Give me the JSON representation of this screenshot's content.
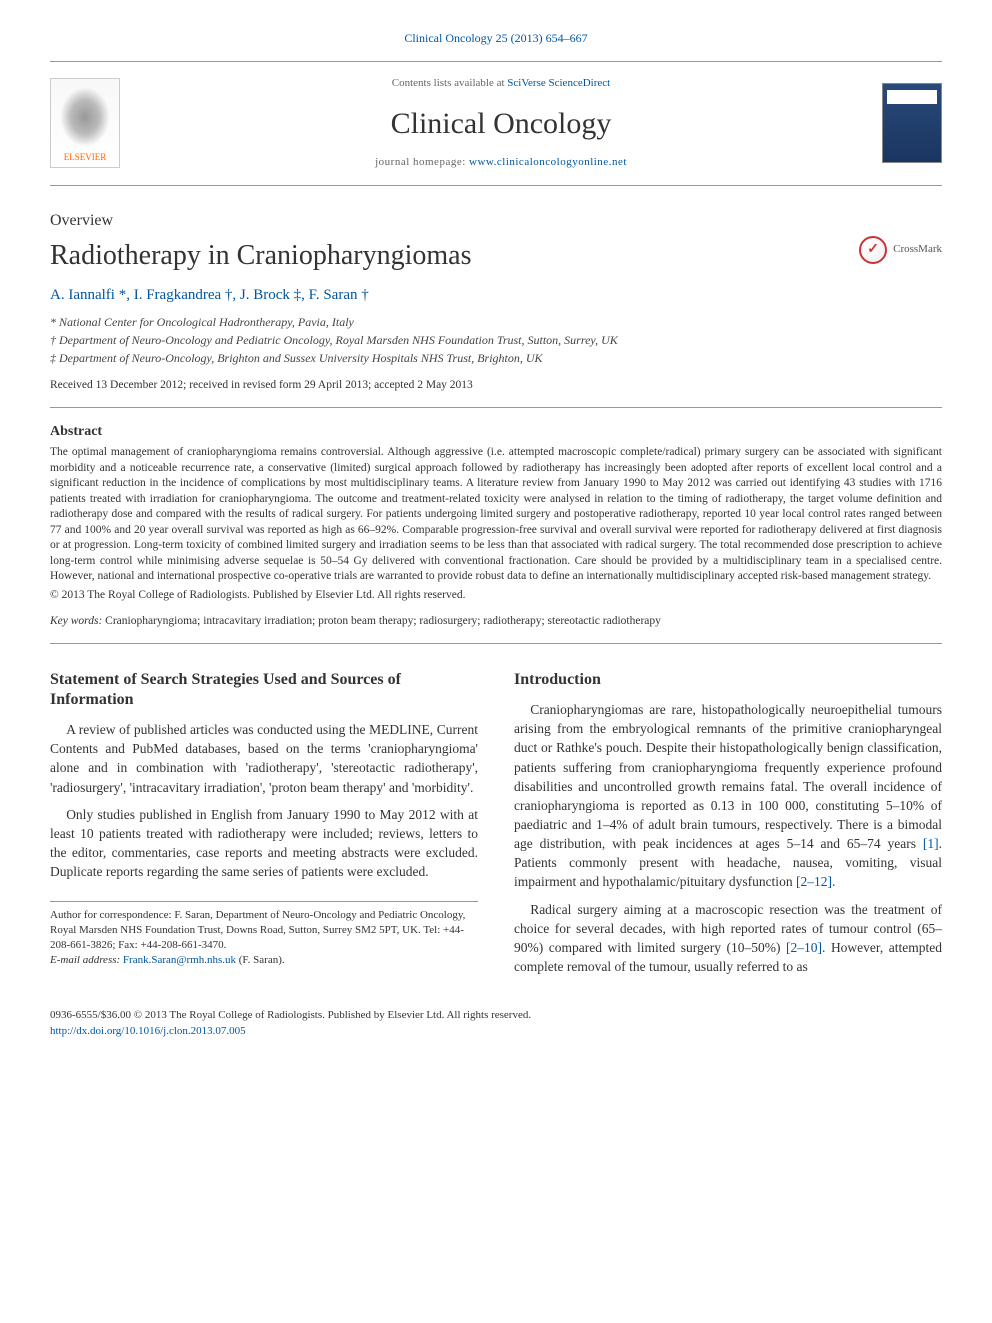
{
  "journal_ref": "Clinical Oncology 25 (2013) 654–667",
  "header": {
    "contents_prefix": "Contents lists available at ",
    "contents_link": "SciVerse ScienceDirect",
    "journal_name": "Clinical Oncology",
    "homepage_prefix": "journal homepage: ",
    "homepage_link": "www.clinicaloncologyonline.net",
    "elsevier_label": "ELSEVIER"
  },
  "article_type": "Overview",
  "title": "Radiotherapy in Craniopharyngiomas",
  "crossmark_label": "CrossMark",
  "authors": "A. Iannalfi *, I. Fragkandrea †, J. Brock ‡, F. Saran †",
  "affiliations": {
    "a": "* National Center for Oncological Hadrontherapy, Pavia, Italy",
    "b": "† Department of Neuro-Oncology and Pediatric Oncology, Royal Marsden NHS Foundation Trust, Sutton, Surrey, UK",
    "c": "‡ Department of Neuro-Oncology, Brighton and Sussex University Hospitals NHS Trust, Brighton, UK"
  },
  "history": "Received 13 December 2012; received in revised form 29 April 2013; accepted 2 May 2013",
  "abstract": {
    "heading": "Abstract",
    "text": "The optimal management of craniopharyngioma remains controversial. Although aggressive (i.e. attempted macroscopic complete/radical) primary surgery can be associated with significant morbidity and a noticeable recurrence rate, a conservative (limited) surgical approach followed by radiotherapy has increasingly been adopted after reports of excellent local control and a significant reduction in the incidence of complications by most multidisciplinary teams. A literature review from January 1990 to May 2012 was carried out identifying 43 studies with 1716 patients treated with irradiation for craniopharyngioma. The outcome and treatment-related toxicity were analysed in relation to the timing of radiotherapy, the target volume definition and radiotherapy dose and compared with the results of radical surgery. For patients undergoing limited surgery and postoperative radiotherapy, reported 10 year local control rates ranged between 77 and 100% and 20 year overall survival was reported as high as 66–92%. Comparable progression-free survival and overall survival were reported for radiotherapy delivered at first diagnosis or at progression. Long-term toxicity of combined limited surgery and irradiation seems to be less than that associated with radical surgery. The total recommended dose prescription to achieve long-term control while minimising adverse sequelae is 50–54 Gy delivered with conventional fractionation. Care should be provided by a multidisciplinary team in a specialised centre. However, national and international prospective co-operative trials are warranted to provide robust data to define an internationally multidisciplinary accepted risk-based management strategy.",
    "copyright": "© 2013 The Royal College of Radiologists. Published by Elsevier Ltd. All rights reserved."
  },
  "keywords": {
    "label": "Key words:",
    "text": " Craniopharyngioma; intracavitary irradiation; proton beam therapy; radiosurgery; radiotherapy; stereotactic radiotherapy"
  },
  "left_column": {
    "heading": "Statement of Search Strategies Used and Sources of Information",
    "para1": "A review of published articles was conducted using the MEDLINE, Current Contents and PubMed databases, based on the terms 'craniopharyngioma' alone and in combination with 'radiotherapy', 'stereotactic radiotherapy', 'radiosurgery', 'intracavitary irradiation', 'proton beam therapy' and 'morbidity'.",
    "para2": "Only studies published in English from January 1990 to May 2012 with at least 10 patients treated with radiotherapy were included; reviews, letters to the editor, commentaries, case reports and meeting abstracts were excluded. Duplicate reports regarding the same series of patients were excluded."
  },
  "right_column": {
    "heading": "Introduction",
    "para1_a": "Craniopharyngiomas are rare, histopathologically neuroepithelial tumours arising from the embryological remnants of the primitive craniopharyngeal duct or Rathke's pouch. Despite their histopathologically benign classification, patients suffering from craniopharyngioma frequently experience profound disabilities and uncontrolled growth remains fatal. The overall incidence of craniopharyngioma is reported as 0.13 in 100 000, constituting 5–10% of paediatric and 1–4% of adult brain tumours, respectively. There is a bimodal age distribution, with peak incidences at ages 5–14 and 65–74 years ",
    "ref1": "[1]",
    "para1_b": ". Patients commonly present with headache, nausea, vomiting, visual impairment and hypothalamic/pituitary dysfunction ",
    "ref2": "[2–12]",
    "para1_c": ".",
    "para2_a": "Radical surgery aiming at a macroscopic resection was the treatment of choice for several decades, with high reported rates of tumour control (65–90%) compared with limited surgery (10–50%) ",
    "ref3": "[2–10]",
    "para2_b": ". However, attempted complete removal of the tumour, usually referred to as"
  },
  "correspondence": {
    "text": "Author for correspondence: F. Saran, Department of Neuro-Oncology and Pediatric Oncology, Royal Marsden NHS Foundation Trust, Downs Road, Sutton, Surrey SM2 5PT, UK. Tel: +44-208-661-3826; Fax: +44-208-661-3470.",
    "email_label": "E-mail address:",
    "email": "Frank.Saran@rmh.nhs.uk",
    "email_suffix": " (F. Saran)."
  },
  "footer": {
    "issn": "0936-6555/$36.00 © 2013 The Royal College of Radiologists. Published by Elsevier Ltd. All rights reserved.",
    "doi": "http://dx.doi.org/10.1016/j.clon.2013.07.005"
  },
  "colors": {
    "link": "#0056a0",
    "text": "#333333",
    "rule": "#999999",
    "elsevier_orange": "#ff6600"
  }
}
